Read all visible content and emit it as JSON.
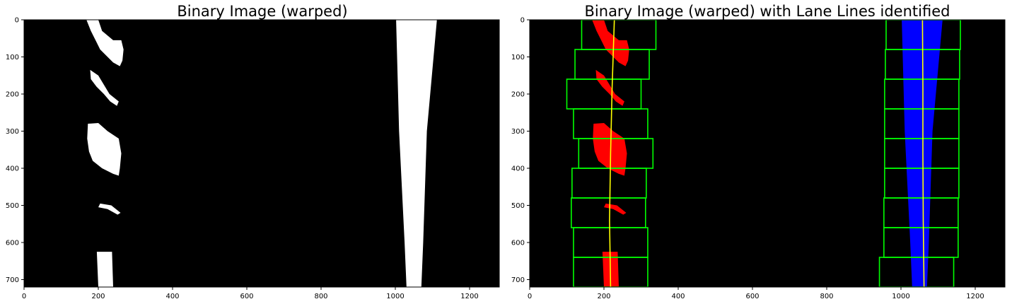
{
  "panels": [
    {
      "title": "Binary Image (warped)",
      "image_width": 1280,
      "image_height": 720,
      "x_ticks": [
        0,
        200,
        400,
        600,
        800,
        1000,
        1200
      ],
      "y_ticks": [
        0,
        100,
        200,
        300,
        400,
        500,
        600,
        700
      ],
      "content": "binary"
    },
    {
      "title": "Binary Image (warped) with Lane Lines identified",
      "image_width": 1280,
      "image_height": 720,
      "x_ticks": [
        0,
        200,
        400,
        600,
        800,
        1000,
        1200
      ],
      "y_ticks": [
        0,
        100,
        200,
        300,
        400,
        500,
        600,
        700
      ],
      "content": "lanes"
    }
  ],
  "colors": {
    "background": "#000000",
    "binary_pixels": "#ffffff",
    "left_lane_pixels": "#ff0000",
    "right_lane_pixels": "#0000ff",
    "search_windows": "#00ff00",
    "fit_line": "#ffff00"
  },
  "sliding_windows": {
    "left": [
      [
        140,
        340,
        0,
        80
      ],
      [
        122,
        322,
        80,
        160
      ],
      [
        100,
        300,
        160,
        240
      ],
      [
        118,
        318,
        240,
        320
      ],
      [
        132,
        332,
        320,
        400
      ],
      [
        114,
        314,
        400,
        480
      ],
      [
        112,
        312,
        480,
        560
      ],
      [
        118,
        318,
        560,
        640
      ],
      [
        118,
        318,
        640,
        720
      ]
    ],
    "right": [
      [
        960,
        1160,
        0,
        80
      ],
      [
        958,
        1158,
        80,
        160
      ],
      [
        956,
        1156,
        160,
        240
      ],
      [
        956,
        1156,
        240,
        320
      ],
      [
        956,
        1156,
        320,
        400
      ],
      [
        956,
        1156,
        400,
        480
      ],
      [
        954,
        1154,
        480,
        560
      ],
      [
        954,
        1154,
        560,
        640
      ],
      [
        942,
        1142,
        640,
        720
      ]
    ]
  },
  "fit_lines": {
    "left": [
      [
        228,
        0
      ],
      [
        222,
        180
      ],
      [
        218,
        360
      ],
      [
        215,
        540
      ],
      [
        218,
        720
      ]
    ],
    "right": [
      [
        1058,
        0
      ],
      [
        1059,
        180
      ],
      [
        1059,
        360
      ],
      [
        1060,
        540
      ],
      [
        1062,
        720
      ]
    ]
  }
}
